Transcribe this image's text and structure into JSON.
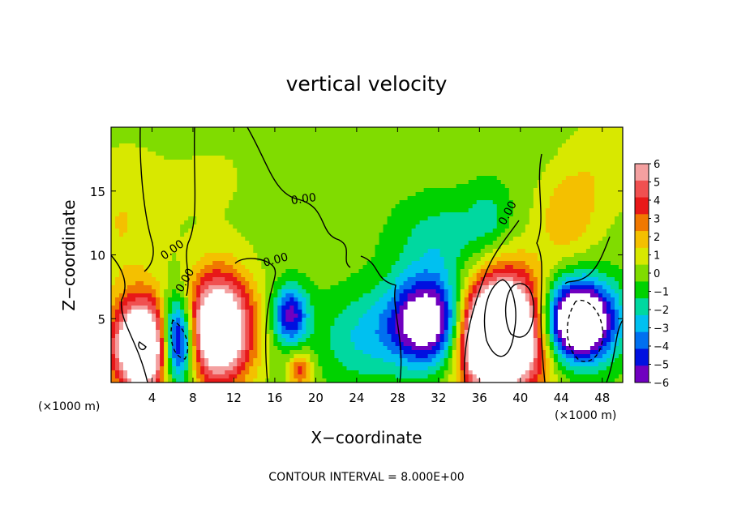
{
  "chart_data": {
    "type": "heatmap",
    "title": "vertical velocity",
    "xlabel": "X−coordinate",
    "ylabel": "Z−coordinate",
    "x_unit_left": "(×1000 m)",
    "x_unit_right": "(×1000 m)",
    "xlim": [
      0,
      50
    ],
    "ylim": [
      0,
      20
    ],
    "x_ticks": [
      4,
      8,
      12,
      16,
      20,
      24,
      28,
      32,
      36,
      40,
      44,
      48
    ],
    "y_ticks": [
      5,
      10,
      15
    ],
    "colorbar": {
      "levels": [
        6,
        5,
        4,
        3,
        2,
        1,
        0,
        -1,
        -2,
        -3,
        -4,
        -5,
        -6
      ],
      "labels": [
        "6",
        "5",
        "4",
        "3",
        "2",
        "1",
        "0",
        "−1",
        "−2",
        "−3",
        "−4",
        "−5",
        "−6"
      ],
      "colors": [
        "#f4a0a0",
        "#f05050",
        "#e81818",
        "#f07800",
        "#f4c000",
        "#d8e800",
        "#80dc00",
        "#00d200",
        "#00d8a0",
        "#00c0f0",
        "#0070f0",
        "#0010e0",
        "#7000c0"
      ]
    },
    "contour_label": "0.00",
    "contour_interval_text": "CONTOUR INTERVAL = 8.000E+00",
    "cells": [
      {
        "x": 3.0,
        "z": 2.8,
        "sx": 2.0,
        "sz": 2.6,
        "w": 12
      },
      {
        "x": 10.5,
        "z": 4.2,
        "sx": 2.3,
        "sz": 3.0,
        "w": 11
      },
      {
        "x": 38.5,
        "z": 4.0,
        "sx": 3.0,
        "sz": 3.2,
        "w": 14
      },
      {
        "x": 36.5,
        "z": 3.0,
        "sx": 1.6,
        "sz": 2.2,
        "w": 5
      },
      {
        "x": 18.5,
        "z": 1.0,
        "sx": 0.8,
        "sz": 1.0,
        "w": 4
      },
      {
        "x": 6.5,
        "z": 3.3,
        "sx": 1.2,
        "sz": 2.4,
        "w": -10
      },
      {
        "x": 17.5,
        "z": 5.3,
        "sx": 1.2,
        "sz": 1.6,
        "w": -6
      },
      {
        "x": 31.0,
        "z": 4.8,
        "sx": 2.6,
        "sz": 2.4,
        "w": -9
      },
      {
        "x": 45.5,
        "z": 4.8,
        "sx": 2.6,
        "sz": 2.2,
        "w": -12
      },
      {
        "x": 24.5,
        "z": 3.5,
        "sx": 3.0,
        "sz": 2.6,
        "w": -2.5
      },
      {
        "x": 32.5,
        "z": 11.0,
        "sx": 3.5,
        "sz": 2.5,
        "w": -2.2
      },
      {
        "x": 37.0,
        "z": 13.0,
        "sx": 1.5,
        "sz": 2.0,
        "w": -1.5
      },
      {
        "x": 44.5,
        "z": 13.0,
        "sx": 2.0,
        "sz": 2.5,
        "w": 2.2
      },
      {
        "x": 1.0,
        "z": 12.5,
        "sx": 3.0,
        "sz": 4.0,
        "w": 1.5
      },
      {
        "x": 10.0,
        "z": 16.0,
        "sx": 4.0,
        "sz": 3.0,
        "w": 0.6
      },
      {
        "x": 48.0,
        "z": 17.0,
        "sx": 2.5,
        "sz": 3.0,
        "w": 1.2
      }
    ]
  }
}
